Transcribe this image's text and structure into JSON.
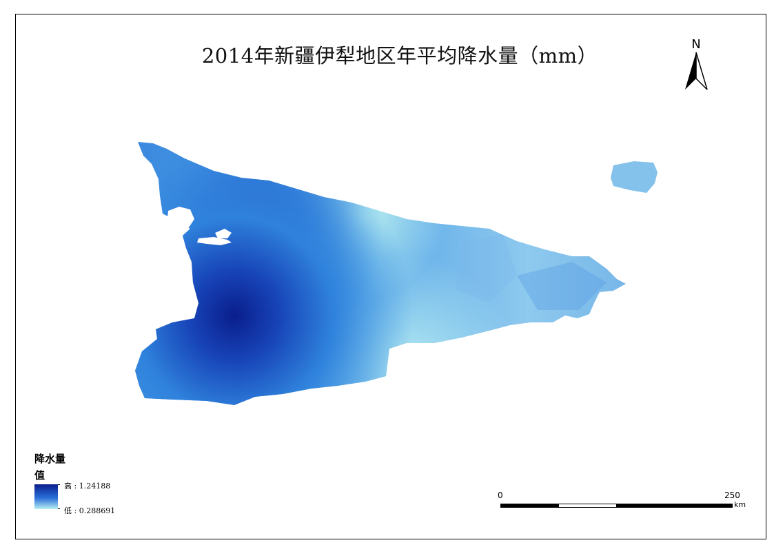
{
  "map": {
    "title": "2014年新疆伊犁地区年平均降水量（mm）",
    "north_arrow": {
      "label": "N",
      "icon": "north-arrow-icon"
    },
    "legend": {
      "title": "降水量",
      "subtitle": "值",
      "high_label": "高 : 1.24188",
      "low_label": "低 : 0.288691",
      "high_value": 1.24188,
      "low_value": 0.288691,
      "colors": {
        "high": "#0a1e8c",
        "mid": "#2a6fd8",
        "low": "#b8f0f2"
      }
    },
    "scale_bar": {
      "start_label": "0",
      "end_label": "250",
      "unit": "km"
    }
  }
}
